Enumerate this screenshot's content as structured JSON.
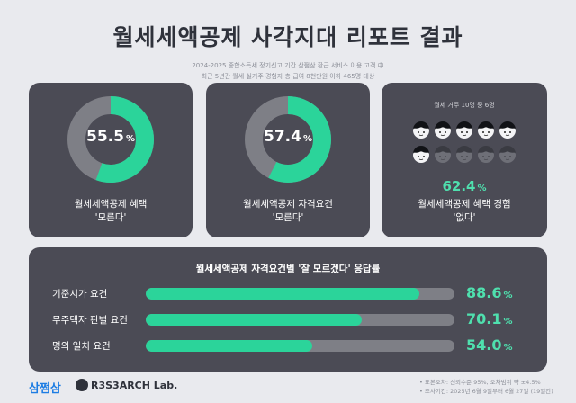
{
  "header": {
    "title": "월세세액공제 사각지대 리포트 결과",
    "subtitle_line1": "2024-2025 종합소득세 정기신고 기간 삼쩜삼 환급 서비스 이용 고객 中",
    "subtitle_line2": "최근 5년간 월세 실거주 경험자 총 급여 8천만원 이하 465명 대상"
  },
  "card1": {
    "value": "55.5",
    "pct": "%",
    "fill": 0.555,
    "label_line1": "월세세액공제 혜택",
    "label_line2": "'모른다'"
  },
  "card2": {
    "value": "57.4",
    "pct": "%",
    "fill": 0.574,
    "label_line1": "월세세액공제 자격요건",
    "label_line2": "'모른다'"
  },
  "card3": {
    "caption": "월세 거주 10명 중 6명",
    "highlighted_people": 6,
    "total_people": 10,
    "value": "62.4",
    "pct": "%",
    "label_line1": "월세세액공제 혜택 경험",
    "label_line2": "'없다'"
  },
  "bars": {
    "title": "월세세액공제 자격요건별 '잘 모르겠다' 응답률",
    "items": [
      {
        "label": "기준시가 요건",
        "value": "88.6",
        "pct": "%",
        "fill": 0.886
      },
      {
        "label": "무주택자 판별 요건",
        "value": "70.1",
        "pct": "%",
        "fill": 0.701
      },
      {
        "label": "명의 일치 요건",
        "value": "54.0",
        "pct": "%",
        "fill": 0.54
      }
    ]
  },
  "footer": {
    "logo1": "삼쩜삼",
    "logo2": "R3S3ARCH Lab.",
    "note1": "• 표본오차: 신뢰수준 95%, 오차범위 약 ±4.5%",
    "note2": "• 조사기간: 2025년 6월 9일부터 6월 27일 (19일간)"
  },
  "colors": {
    "accent": "#2bd49a",
    "card_bg": "#4b4b55",
    "track": "#7e7f86",
    "page_bg": "#e9eaee"
  },
  "icons": {
    "person": "person-face-icon"
  }
}
